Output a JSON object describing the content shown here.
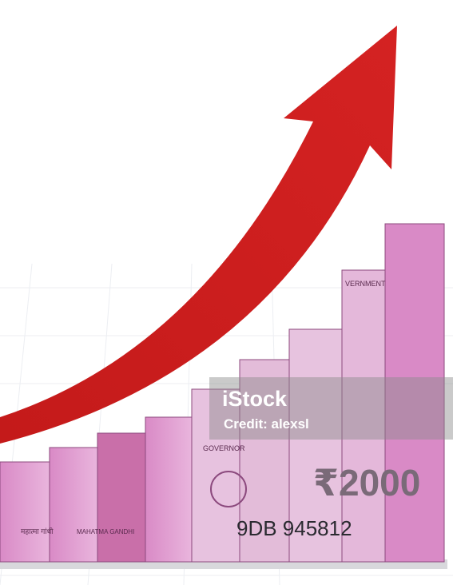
{
  "watermark": {
    "brand": "iStock",
    "credit": "Credit: alexsl"
  },
  "note_texts": {
    "denomination": "₹2000",
    "serial": "9DB 945812",
    "governor": "GOVERNOR",
    "name": "MAHATMA GANDHI",
    "hindi_name": "महात्मा गांधी",
    "government": "VERNMENT"
  }
}
